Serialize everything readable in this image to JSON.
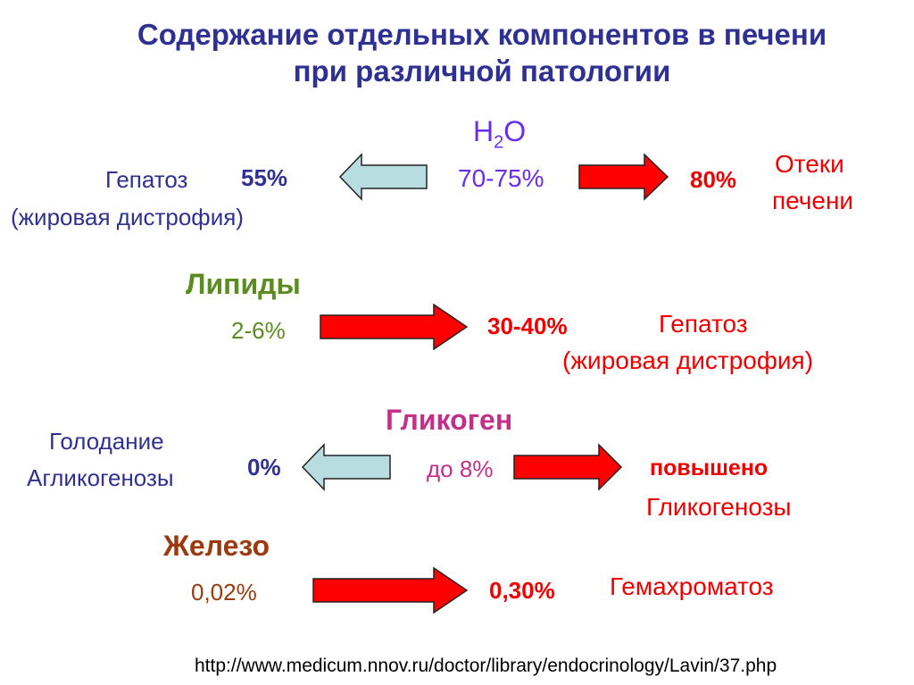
{
  "title": {
    "line1": "Содержание отдельных компонентов в печени",
    "line2": "при различной патологии"
  },
  "colors": {
    "decrease_arrow": "#b7dde1",
    "increase_arrow": "#ff0000",
    "title": "#2e3192"
  },
  "water": {
    "name": "H",
    "sub": "2",
    "name_end": "O",
    "normal": "70-75%",
    "low_value": "55%",
    "low_label1": "Гепатоз",
    "low_label2": "(жировая дистрофия)",
    "high_value": "80%",
    "high_label1": "Отеки",
    "high_label2": "печени"
  },
  "lipids": {
    "name": "Липиды",
    "normal": "2-6%",
    "high_value": "30-40%",
    "high_label1": "Гепатоз",
    "high_label2": "(жировая дистрофия)"
  },
  "glycogen": {
    "name": "Гликоген",
    "normal": "до 8%",
    "low_value": "0%",
    "low_label1": "Голодание",
    "low_label2": "Агликогенозы",
    "high_value": "повышено",
    "high_label": "Гликогенозы"
  },
  "iron": {
    "name": "Железо",
    "normal": "0,02%",
    "high_value": "0,30%",
    "high_label": "Гемахроматоз"
  },
  "source_url": "http://www.medicum.nnov.ru/doctor/library/endocrinology/Lavin/37.php"
}
